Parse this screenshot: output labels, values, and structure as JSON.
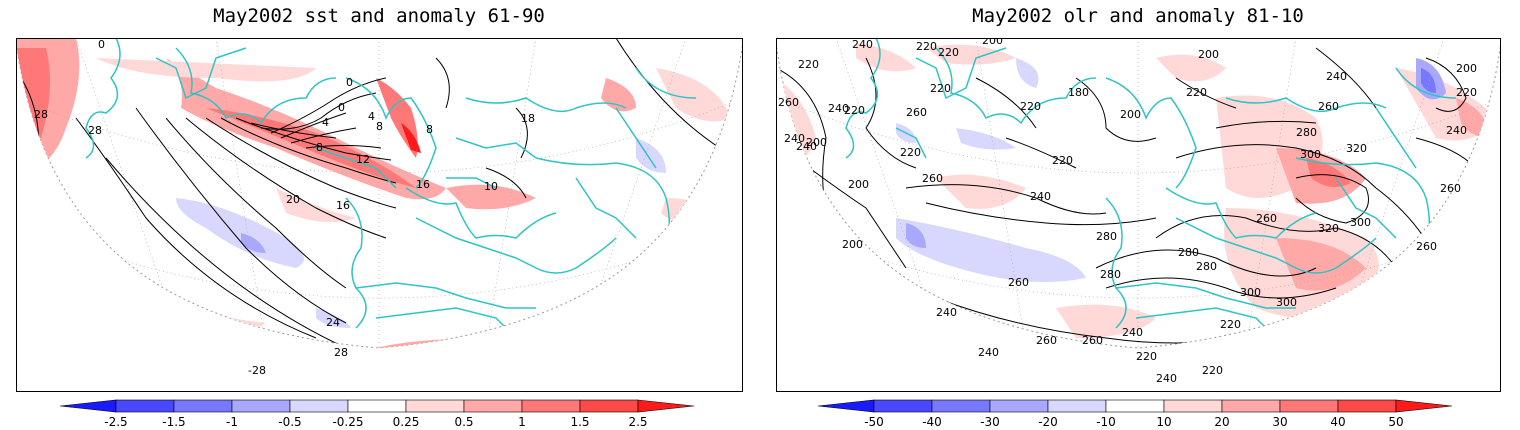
{
  "panels": [
    {
      "title": "May2002 sst and anomaly 61-90",
      "contour_labels": [
        "0",
        "0",
        "4",
        "0",
        "4",
        "8",
        "8",
        "8",
        "12",
        "16",
        "16",
        "20",
        "28",
        "28",
        "24",
        "28",
        "-28",
        "18",
        "10"
      ],
      "colorbar": {
        "levels": [
          "-2.5",
          "-1.5",
          "-1",
          "-0.5",
          "-0.25",
          "0.25",
          "0.5",
          "1",
          "1.5",
          "2.5"
        ],
        "colors": [
          "#1a1aff",
          "#4848ff",
          "#7878ff",
          "#a8a8ff",
          "#d8d8ff",
          "#ffffff",
          "#ffd8d8",
          "#ffa8a8",
          "#ff7878",
          "#ff4848",
          "#ff1a1a"
        ]
      }
    },
    {
      "title": "May2002 olr and anomaly 81-10",
      "contour_labels": [
        "260",
        "240",
        "200",
        "240",
        "220",
        "240",
        "220",
        "220",
        "200",
        "220",
        "180",
        "200",
        "200",
        "220",
        "220",
        "220",
        "260",
        "240",
        "200",
        "260",
        "220",
        "220",
        "200",
        "240",
        "300",
        "320",
        "280",
        "260",
        "280",
        "260",
        "300",
        "300",
        "320",
        "280",
        "300",
        "240",
        "280",
        "220",
        "260",
        "240",
        "220",
        "220",
        "240",
        "240",
        "260",
        "260",
        "240",
        "200",
        "220",
        "240",
        "280",
        "260",
        "260"
      ],
      "colorbar": {
        "levels": [
          "-50",
          "-40",
          "-30",
          "-20",
          "-10",
          "10",
          "20",
          "30",
          "40",
          "50"
        ],
        "colors": [
          "#1a1aff",
          "#4848ff",
          "#7878ff",
          "#a8a8ff",
          "#d8d8ff",
          "#ffffff",
          "#ffd8d8",
          "#ffa8a8",
          "#ff7878",
          "#ff4848",
          "#ff1a1a"
        ]
      }
    }
  ],
  "colors": {
    "coastline": "#2ec4c4",
    "contour": "#000000",
    "frame": "#000000",
    "grid": "#999999"
  }
}
